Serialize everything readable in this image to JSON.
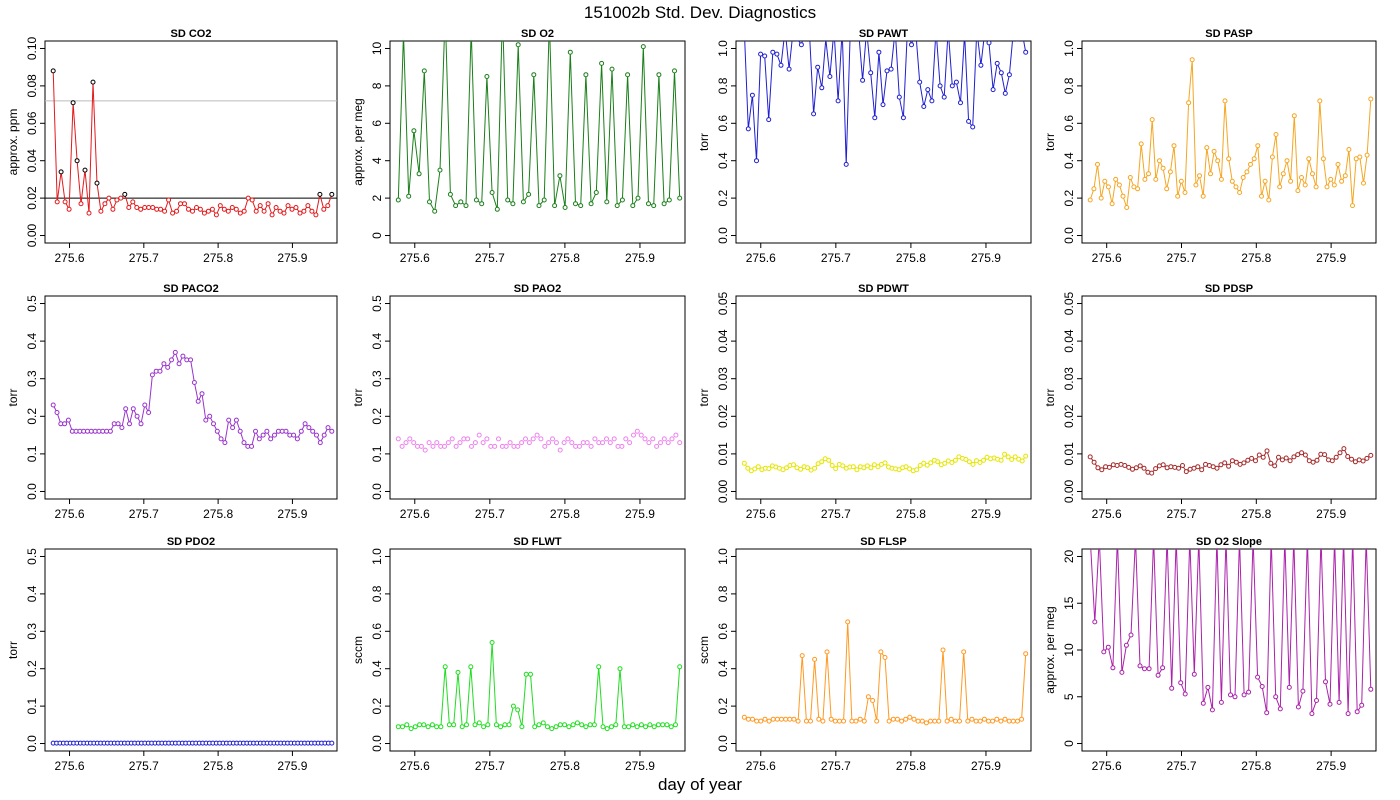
{
  "figure": {
    "title": "151002b   Std. Dev. Diagnostics",
    "xlabel": "day of year"
  },
  "chart_data": [
    {
      "type": "line",
      "title": "SD CO2",
      "ylabel": "approx. ppm",
      "color": "#e31a1c",
      "xlim": [
        275.567,
        275.96
      ],
      "ylim": [
        0,
        0.1
      ],
      "xticks": [
        "275.6",
        "275.7",
        "275.8",
        "275.9"
      ],
      "yticks": [
        "0.00",
        "0.02",
        "0.04",
        "0.06",
        "0.08",
        "0.10"
      ],
      "hlines": [
        {
          "y": 0.02,
          "color": "#000000"
        },
        {
          "y": 0.072,
          "color": "#bbbbbb"
        }
      ],
      "highlight_above": 0.02,
      "values": [
        0.088,
        0.018,
        0.034,
        0.018,
        0.014,
        0.071,
        0.04,
        0.017,
        0.035,
        0.012,
        0.082,
        0.028,
        0.013,
        0.017,
        0.02,
        0.014,
        0.019,
        0.02,
        0.022,
        0.015,
        0.018,
        0.015,
        0.014,
        0.015,
        0.015,
        0.015,
        0.014,
        0.014,
        0.013,
        0.019,
        0.012,
        0.013,
        0.017,
        0.017,
        0.014,
        0.013,
        0.015,
        0.014,
        0.012,
        0.013,
        0.014,
        0.011,
        0.016,
        0.014,
        0.013,
        0.015,
        0.014,
        0.012,
        0.013,
        0.02,
        0.019,
        0.013,
        0.016,
        0.013,
        0.017,
        0.011,
        0.015,
        0.013,
        0.012,
        0.016,
        0.014,
        0.015,
        0.012,
        0.013,
        0.016,
        0.013,
        0.011,
        0.022,
        0.014,
        0.016,
        0.022
      ]
    },
    {
      "type": "line",
      "title": "SD O2",
      "ylabel": "approx. per meg",
      "color": "#1a7f1a",
      "xlim": [
        275.567,
        275.96
      ],
      "ylim": [
        0,
        10
      ],
      "xticks": [
        "275.6",
        "275.7",
        "275.8",
        "275.9"
      ],
      "yticks": [
        "0",
        "2",
        "4",
        "6",
        "8",
        "10"
      ],
      "values": [
        1.9,
        10.8,
        2.1,
        5.6,
        3.3,
        8.8,
        1.8,
        1.3,
        3.5,
        12,
        2.2,
        1.6,
        1.8,
        1.6,
        11,
        1.9,
        1.7,
        8.5,
        2.3,
        1.4,
        12,
        1.9,
        1.7,
        10.2,
        1.8,
        2.2,
        8.6,
        1.6,
        1.9,
        11.5,
        1.6,
        3.2,
        1.5,
        9.8,
        1.7,
        1.6,
        8.6,
        1.7,
        2.3,
        9.2,
        1.8,
        8.9,
        1.6,
        1.9,
        8.6,
        1.6,
        2,
        10.1,
        1.7,
        1.6,
        8.6,
        1.7,
        1.9,
        8.8,
        2
      ]
    },
    {
      "type": "line",
      "title": "SD PAWT",
      "ylabel": "torr",
      "color": "#1f1fcf",
      "xlim": [
        275.567,
        275.96
      ],
      "ylim": [
        0,
        1
      ],
      "xticks": [
        "275.6",
        "275.7",
        "275.8",
        "275.9"
      ],
      "yticks": [
        "0.0",
        "0.2",
        "0.4",
        "0.6",
        "0.8",
        "1.0"
      ],
      "values": [
        1.1,
        0.57,
        0.75,
        0.4,
        0.97,
        0.96,
        0.62,
        0.98,
        0.97,
        0.91,
        1.1,
        0.89,
        1.1,
        1.05,
        1.02,
        1.1,
        1.08,
        0.65,
        0.9,
        0.79,
        1.05,
        0.85,
        1.1,
        0.72,
        1.1,
        0.38,
        1.1,
        1.08,
        1.1,
        0.83,
        1.1,
        0.87,
        0.63,
        0.98,
        0.7,
        0.88,
        0.89,
        1.1,
        0.74,
        0.63,
        1.1,
        1.02,
        1.1,
        0.82,
        0.69,
        0.78,
        0.72,
        1.1,
        0.8,
        0.74,
        1.1,
        0.8,
        0.82,
        0.71,
        1.08,
        0.61,
        0.58,
        1.1,
        0.91,
        1.1,
        1.03,
        0.78,
        0.92,
        0.87,
        0.76,
        0.86,
        1.1,
        1.05,
        1.1,
        0.98
      ]
    },
    {
      "type": "line",
      "title": "SD PASP",
      "ylabel": "torr",
      "color": "#f5a623",
      "xlim": [
        275.567,
        275.96
      ],
      "ylim": [
        0,
        1
      ],
      "xticks": [
        "275.6",
        "275.7",
        "275.8",
        "275.9"
      ],
      "yticks": [
        "0.0",
        "0.2",
        "0.4",
        "0.6",
        "0.8",
        "1.0"
      ],
      "values": [
        0.19,
        0.25,
        0.38,
        0.2,
        0.29,
        0.26,
        0.17,
        0.3,
        0.27,
        0.21,
        0.15,
        0.31,
        0.26,
        0.25,
        0.49,
        0.3,
        0.33,
        0.62,
        0.3,
        0.4,
        0.36,
        0.25,
        0.34,
        0.48,
        0.21,
        0.29,
        0.23,
        0.71,
        0.94,
        0.27,
        0.32,
        0.21,
        0.47,
        0.33,
        0.45,
        0.4,
        0.3,
        0.72,
        0.41,
        0.29,
        0.26,
        0.23,
        0.31,
        0.34,
        0.38,
        0.41,
        0.48,
        0.21,
        0.29,
        0.19,
        0.42,
        0.54,
        0.26,
        0.33,
        0.4,
        0.29,
        0.64,
        0.24,
        0.31,
        0.27,
        0.41,
        0.33,
        0.26,
        0.72,
        0.41,
        0.26,
        0.3,
        0.27,
        0.38,
        0.29,
        0.32,
        0.46,
        0.16,
        0.41,
        0.42,
        0.28,
        0.43,
        0.73
      ]
    },
    {
      "type": "line",
      "title": "SD PACO2",
      "ylabel": "torr",
      "color": "#9933cc",
      "xlim": [
        275.567,
        275.96
      ],
      "ylim": [
        0,
        0.5
      ],
      "xticks": [
        "275.6",
        "275.7",
        "275.8",
        "275.9"
      ],
      "yticks": [
        "0.0",
        "0.1",
        "0.2",
        "0.3",
        "0.4",
        "0.5"
      ],
      "values": [
        0.23,
        0.21,
        0.18,
        0.18,
        0.19,
        0.16,
        0.16,
        0.16,
        0.16,
        0.16,
        0.16,
        0.16,
        0.16,
        0.16,
        0.16,
        0.16,
        0.18,
        0.18,
        0.17,
        0.22,
        0.18,
        0.22,
        0.2,
        0.18,
        0.23,
        0.21,
        0.31,
        0.32,
        0.32,
        0.34,
        0.33,
        0.35,
        0.37,
        0.34,
        0.36,
        0.35,
        0.35,
        0.29,
        0.24,
        0.26,
        0.19,
        0.2,
        0.18,
        0.16,
        0.14,
        0.13,
        0.19,
        0.17,
        0.19,
        0.16,
        0.13,
        0.12,
        0.12,
        0.16,
        0.14,
        0.15,
        0.16,
        0.14,
        0.15,
        0.16,
        0.16,
        0.16,
        0.15,
        0.15,
        0.14,
        0.16,
        0.18,
        0.17,
        0.16,
        0.15,
        0.13,
        0.15,
        0.17,
        0.16
      ]
    },
    {
      "type": "scatter",
      "title": "SD PAO2",
      "ylabel": "torr",
      "color": "#ee82ee",
      "xlim": [
        275.567,
        275.96
      ],
      "ylim": [
        0,
        0.5
      ],
      "xticks": [
        "275.6",
        "275.7",
        "275.8",
        "275.9"
      ],
      "yticks": [
        "0.0",
        "0.1",
        "0.2",
        "0.3",
        "0.4",
        "0.5"
      ],
      "values": [
        0.14,
        0.12,
        0.13,
        0.14,
        0.13,
        0.12,
        0.12,
        0.11,
        0.13,
        0.12,
        0.13,
        0.12,
        0.12,
        0.13,
        0.14,
        0.12,
        0.13,
        0.14,
        0.14,
        0.12,
        0.13,
        0.15,
        0.13,
        0.14,
        0.12,
        0.12,
        0.14,
        0.12,
        0.12,
        0.13,
        0.12,
        0.12,
        0.13,
        0.14,
        0.13,
        0.14,
        0.15,
        0.14,
        0.12,
        0.13,
        0.14,
        0.13,
        0.11,
        0.13,
        0.14,
        0.13,
        0.12,
        0.12,
        0.13,
        0.13,
        0.12,
        0.14,
        0.13,
        0.13,
        0.14,
        0.13,
        0.14,
        0.12,
        0.12,
        0.14,
        0.13,
        0.15,
        0.16,
        0.15,
        0.14,
        0.13,
        0.14,
        0.12,
        0.13,
        0.14,
        0.13,
        0.14,
        0.15,
        0.13
      ]
    },
    {
      "type": "line",
      "title": "SD PDWT",
      "ylabel": "torr",
      "color": "#e6e600",
      "xlim": [
        275.567,
        275.96
      ],
      "ylim": [
        0,
        0.05
      ],
      "xticks": [
        "275.6",
        "275.7",
        "275.8",
        "275.9"
      ],
      "yticks": [
        "0.00",
        "0.01",
        "0.02",
        "0.03",
        "0.04",
        "0.05"
      ],
      "values": [
        0.0075,
        0.0062,
        0.0055,
        0.006,
        0.0066,
        0.0058,
        0.0062,
        0.0061,
        0.0068,
        0.0065,
        0.0062,
        0.0058,
        0.0063,
        0.0069,
        0.0071,
        0.0063,
        0.0059,
        0.0066,
        0.0063,
        0.0057,
        0.0062,
        0.0074,
        0.0079,
        0.0087,
        0.0083,
        0.0069,
        0.0061,
        0.0072,
        0.0068,
        0.0062,
        0.0065,
        0.0066,
        0.0058,
        0.0066,
        0.0063,
        0.0068,
        0.0063,
        0.0071,
        0.0066,
        0.0072,
        0.0076,
        0.0065,
        0.0062,
        0.006,
        0.0058,
        0.0063,
        0.0066,
        0.006,
        0.0055,
        0.0058,
        0.0069,
        0.0075,
        0.007,
        0.0076,
        0.0083,
        0.0079,
        0.0071,
        0.0075,
        0.0081,
        0.0077,
        0.0083,
        0.0092,
        0.0088,
        0.0085,
        0.0079,
        0.0072,
        0.0082,
        0.0077,
        0.0083,
        0.0091,
        0.0087,
        0.0089,
        0.0086,
        0.0083,
        0.0099,
        0.0092,
        0.0085,
        0.0092,
        0.0086,
        0.0081,
        0.0094
      ]
    },
    {
      "type": "line",
      "title": "SD PDSP",
      "ylabel": "torr",
      "color": "#a52a2a",
      "xlim": [
        275.567,
        275.96
      ],
      "ylim": [
        0,
        0.05
      ],
      "xticks": [
        "275.6",
        "275.7",
        "275.8",
        "275.9"
      ],
      "yticks": [
        "0.00",
        "0.01",
        "0.02",
        "0.03",
        "0.04",
        "0.05"
      ],
      "values": [
        0.0092,
        0.0078,
        0.0063,
        0.0058,
        0.0066,
        0.0064,
        0.0071,
        0.0069,
        0.0072,
        0.0069,
        0.0064,
        0.0059,
        0.0063,
        0.0068,
        0.0062,
        0.0051,
        0.0049,
        0.0061,
        0.0068,
        0.0071,
        0.0063,
        0.0066,
        0.0064,
        0.0062,
        0.0069,
        0.0053,
        0.0059,
        0.0062,
        0.0066,
        0.0058,
        0.0072,
        0.0069,
        0.0066,
        0.0062,
        0.0071,
        0.0076,
        0.0067,
        0.0082,
        0.0078,
        0.0072,
        0.0076,
        0.0083,
        0.0088,
        0.0082,
        0.0097,
        0.0091,
        0.0108,
        0.0075,
        0.0068,
        0.0091,
        0.0084,
        0.0089,
        0.0082,
        0.0092,
        0.0098,
        0.0103,
        0.0097,
        0.0082,
        0.0078,
        0.0083,
        0.0099,
        0.0098,
        0.0084,
        0.0082,
        0.0091,
        0.0103,
        0.0114,
        0.0093,
        0.0086,
        0.0079,
        0.0084,
        0.0081,
        0.0088,
        0.0096
      ]
    },
    {
      "type": "line",
      "title": "SD PDO2",
      "ylabel": "torr",
      "color": "#1f1fcf",
      "xlim": [
        275.567,
        275.96
      ],
      "ylim": [
        0,
        0.5
      ],
      "xticks": [
        "275.6",
        "275.7",
        "275.8",
        "275.9"
      ],
      "yticks": [
        "0.0",
        "0.1",
        "0.2",
        "0.3",
        "0.4",
        "0.5"
      ],
      "values": [
        0.001,
        0.001,
        0.001,
        0.001,
        0.001,
        0.001,
        0.001,
        0.001,
        0.001,
        0.001,
        0.001,
        0.001,
        0.001,
        0.001,
        0.001,
        0.001,
        0.001,
        0.001,
        0.001,
        0.001,
        0.001,
        0.001,
        0.001,
        0.001,
        0.001,
        0.001,
        0.001,
        0.001,
        0.001,
        0.001,
        0.001,
        0.001,
        0.001,
        0.001,
        0.001,
        0.001,
        0.001,
        0.001,
        0.001,
        0.001,
        0.001,
        0.001,
        0.001,
        0.001,
        0.001,
        0.001,
        0.001,
        0.001,
        0.001,
        0.001,
        0.001,
        0.001,
        0.001,
        0.001,
        0.001,
        0.001,
        0.001,
        0.001,
        0.001,
        0.001,
        0.001,
        0.001,
        0.001,
        0.001,
        0.001,
        0.001,
        0.001,
        0.001,
        0.001,
        0.001,
        0.001,
        0.001,
        0.001,
        0.001,
        0.001,
        0.001,
        0.001,
        0.001,
        0.001,
        0.001,
        0.001,
        0.001,
        0.001
      ]
    },
    {
      "type": "line",
      "title": "SD FLWT",
      "ylabel": "sccm",
      "color": "#22dd22",
      "xlim": [
        275.567,
        275.96
      ],
      "ylim": [
        0,
        1
      ],
      "xticks": [
        "275.6",
        "275.7",
        "275.8",
        "275.9"
      ],
      "yticks": [
        "0.0",
        "0.2",
        "0.4",
        "0.6",
        "0.8",
        "1.0"
      ],
      "values": [
        0.09,
        0.09,
        0.1,
        0.08,
        0.09,
        0.1,
        0.1,
        0.09,
        0.1,
        0.09,
        0.09,
        0.41,
        0.1,
        0.1,
        0.38,
        0.09,
        0.1,
        0.41,
        0.1,
        0.11,
        0.09,
        0.1,
        0.54,
        0.1,
        0.09,
        0.1,
        0.1,
        0.2,
        0.18,
        0.09,
        0.37,
        0.37,
        0.09,
        0.1,
        0.11,
        0.09,
        0.08,
        0.09,
        0.1,
        0.1,
        0.09,
        0.1,
        0.11,
        0.1,
        0.09,
        0.1,
        0.1,
        0.41,
        0.09,
        0.08,
        0.09,
        0.1,
        0.4,
        0.09,
        0.09,
        0.1,
        0.09,
        0.1,
        0.09,
        0.1,
        0.09,
        0.1,
        0.1,
        0.1,
        0.09,
        0.1,
        0.41
      ]
    },
    {
      "type": "line",
      "title": "SD FLSP",
      "ylabel": "sccm",
      "color": "#ff9922",
      "xlim": [
        275.567,
        275.96
      ],
      "ylim": [
        0,
        1
      ],
      "xticks": [
        "275.6",
        "275.7",
        "275.8",
        "275.9"
      ],
      "yticks": [
        "0.0",
        "0.2",
        "0.4",
        "0.6",
        "0.8",
        "1.0"
      ],
      "values": [
        0.14,
        0.13,
        0.13,
        0.12,
        0.12,
        0.13,
        0.12,
        0.13,
        0.13,
        0.13,
        0.13,
        0.13,
        0.13,
        0.12,
        0.47,
        0.12,
        0.12,
        0.45,
        0.13,
        0.12,
        0.49,
        0.13,
        0.12,
        0.12,
        0.12,
        0.65,
        0.12,
        0.12,
        0.13,
        0.12,
        0.25,
        0.23,
        0.12,
        0.49,
        0.46,
        0.12,
        0.13,
        0.13,
        0.12,
        0.13,
        0.14,
        0.13,
        0.12,
        0.12,
        0.11,
        0.12,
        0.12,
        0.12,
        0.5,
        0.12,
        0.13,
        0.12,
        0.12,
        0.49,
        0.12,
        0.13,
        0.12,
        0.12,
        0.13,
        0.12,
        0.12,
        0.13,
        0.12,
        0.13,
        0.12,
        0.12,
        0.12,
        0.13,
        0.48
      ]
    },
    {
      "type": "line",
      "title": "SD O2 Slope",
      "ylabel": "approx. per meg",
      "color": "#aa22aa",
      "xlim": [
        275.567,
        275.96
      ],
      "ylim": [
        0,
        20
      ],
      "xticks": [
        "275.6",
        "275.7",
        "275.8",
        "275.9"
      ],
      "yticks": [
        "0",
        "5",
        "10",
        "15",
        "20"
      ],
      "values": [
        22,
        13,
        22,
        9.8,
        10.3,
        8.1,
        22,
        7.6,
        10.5,
        11.6,
        22,
        8.3,
        8,
        8,
        22,
        7.3,
        8.1,
        22,
        5.9,
        22,
        6.5,
        5.3,
        22,
        7.4,
        22,
        4.3,
        6,
        3.6,
        22,
        4.4,
        22,
        5.2,
        5,
        22,
        5.2,
        5.5,
        22,
        7.1,
        6.1,
        3.3,
        22,
        5,
        3.7,
        22,
        6,
        22,
        3.9,
        5.6,
        22,
        3.2,
        4.6,
        22,
        6.6,
        4.2,
        22,
        4.4,
        22,
        3.2,
        22,
        3.4,
        4.1,
        22,
        5.8
      ]
    }
  ]
}
